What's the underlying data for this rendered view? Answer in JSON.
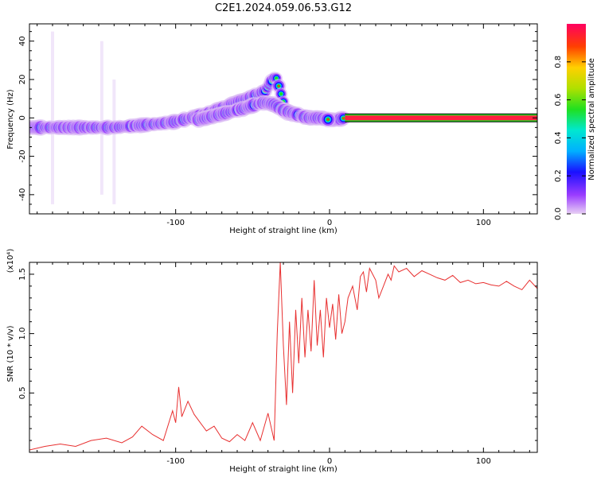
{
  "title": "C2E1.2024.059.06.53.G12",
  "chart_data": [
    {
      "type": "heatmap",
      "xlabel": "Height of straight line (km)",
      "ylabel": "Frequency (Hz)",
      "xlim": [
        -195,
        135
      ],
      "ylim": [
        -50,
        49
      ],
      "xticks": [
        -100,
        0,
        100
      ],
      "xtick_labels": [
        "-100",
        "0",
        "100"
      ],
      "yticks": [
        -40,
        -20,
        0,
        20,
        40
      ],
      "ytick_labels": [
        "-40",
        "-20",
        "0",
        "20",
        "40"
      ],
      "colorbar": {
        "label": "Normalized spectral amplitude",
        "range": [
          0,
          1
        ],
        "ticks": [
          0.0,
          0.2,
          0.4,
          0.6,
          0.8
        ],
        "tick_labels": [
          "0.0",
          "0.2",
          "0.4",
          "0.6",
          "0.8"
        ],
        "colors": [
          "#e8d0f4",
          "#9a3cff",
          "#1a10ff",
          "#00b0ff",
          "#00e8d0",
          "#20e020",
          "#b0e000",
          "#ffd000",
          "#ff4000",
          "#ff0060"
        ]
      },
      "series": [
        {
          "x": [
            -195,
            -175,
            -155,
            -140,
            -125,
            -110,
            -100,
            -90,
            -80,
            -70,
            -60,
            -50,
            -42,
            -35,
            -28,
            -20,
            -12,
            -5,
            0,
            5,
            10
          ],
          "y": [
            -5,
            -5,
            -5,
            -5,
            -4,
            -3,
            -2,
            0,
            2,
            5,
            8,
            11,
            14,
            22,
            3,
            1,
            0,
            0,
            -1,
            -1,
            0
          ]
        },
        {
          "x": [
            -85,
            -75,
            -65,
            -55,
            -48,
            -42,
            -36,
            -30,
            -22,
            -14,
            -6,
            0
          ],
          "y": [
            -1,
            1,
            3,
            5,
            7,
            8,
            7,
            4,
            2,
            0,
            0,
            -1
          ]
        },
        {
          "x": [
            10,
            40,
            70,
            100,
            135
          ],
          "y": [
            0,
            0,
            0,
            0,
            0
          ]
        }
      ]
    },
    {
      "type": "line",
      "xlabel": "Height of straight line (km)",
      "ylabel": "SNR (10 * v/v)",
      "y_multiplier": "(x10⁴)",
      "xlim": [
        -195,
        135
      ],
      "ylim": [
        0,
        16000
      ],
      "xticks": [
        -100,
        0,
        100
      ],
      "xtick_labels": [
        "-100",
        "0",
        "100"
      ],
      "yticks": [
        5000,
        10000,
        15000
      ],
      "ytick_labels": [
        "0.5",
        "1.0",
        "1.5"
      ],
      "color": "#e83030",
      "x": [
        -195,
        -185,
        -175,
        -165,
        -155,
        -145,
        -135,
        -128,
        -122,
        -115,
        -108,
        -102,
        -100,
        -98,
        -96,
        -92,
        -88,
        -84,
        -80,
        -75,
        -70,
        -65,
        -60,
        -55,
        -50,
        -45,
        -40,
        -36,
        -34,
        -32,
        -30,
        -28,
        -26,
        -24,
        -22,
        -20,
        -18,
        -16,
        -14,
        -12,
        -10,
        -8,
        -6,
        -4,
        -2,
        0,
        2,
        4,
        6,
        8,
        10,
        12,
        15,
        18,
        20,
        22,
        24,
        26,
        28,
        30,
        32,
        35,
        38,
        40,
        42,
        45,
        50,
        55,
        60,
        65,
        70,
        75,
        80,
        85,
        90,
        95,
        100,
        105,
        110,
        115,
        120,
        125,
        130,
        135
      ],
      "y": [
        200,
        500,
        700,
        500,
        1000,
        1200,
        800,
        1300,
        2200,
        1500,
        1000,
        3500,
        2500,
        5500,
        3000,
        4300,
        3200,
        2500,
        1800,
        2200,
        1200,
        900,
        1500,
        1000,
        2500,
        1000,
        3300,
        1000,
        10000,
        16000,
        9000,
        4000,
        11000,
        5000,
        12000,
        7500,
        13000,
        8000,
        12000,
        8500,
        14500,
        9000,
        12000,
        8000,
        13000,
        10500,
        12500,
        9500,
        13300,
        10000,
        11000,
        13000,
        14000,
        12000,
        14800,
        15200,
        13500,
        15500,
        15000,
        14500,
        13000,
        14000,
        15000,
        14500,
        15700,
        15200,
        15500,
        14800,
        15300,
        15000,
        14700,
        14500,
        14900,
        14300,
        14500,
        14200,
        14300,
        14100,
        14000,
        14400,
        14000,
        13700,
        14500,
        13800
      ]
    }
  ]
}
